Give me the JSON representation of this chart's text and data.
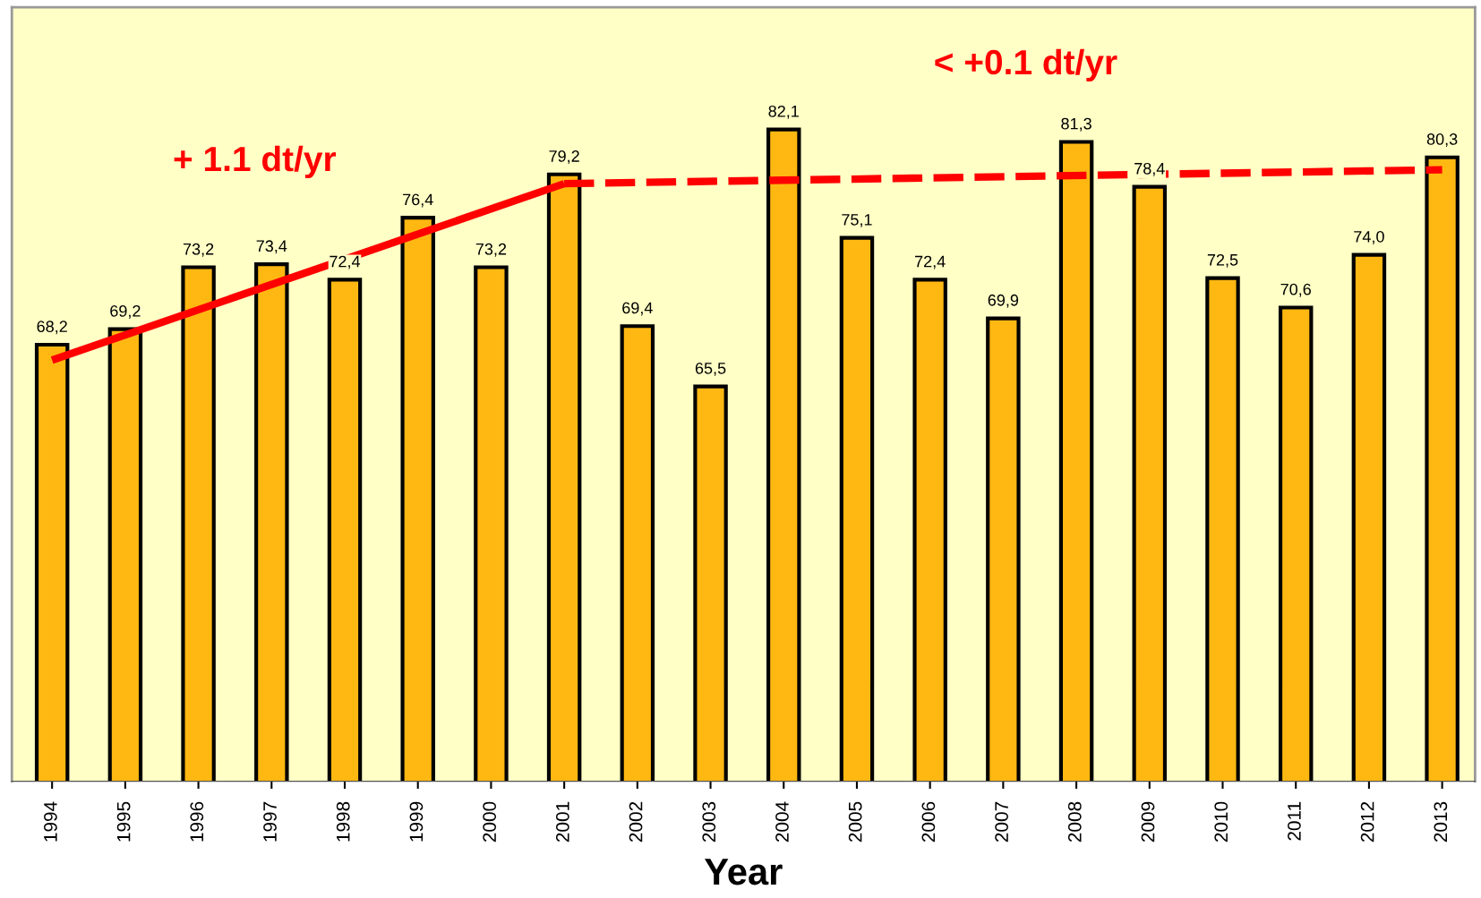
{
  "chart_data": {
    "type": "bar",
    "xlabel": "Year",
    "categories": [
      "1994",
      "1995",
      "1996",
      "1997",
      "1998",
      "1999",
      "2000",
      "2001",
      "2002",
      "2003",
      "2004",
      "2005",
      "2006",
      "2007",
      "2008",
      "2009",
      "2010",
      "2011",
      "2012",
      "2013"
    ],
    "series": [
      {
        "color": "#ffb812",
        "values": [
          68.2,
          69.2,
          73.2,
          73.4,
          72.4,
          76.4,
          73.2,
          79.2,
          69.4,
          65.5,
          82.1,
          75.1,
          72.4,
          69.9,
          81.3,
          78.4,
          72.5,
          70.6,
          74.0,
          80.3
        ],
        "value_labels": [
          "68,2",
          "69,2",
          "73,2",
          "73,4",
          "72,4",
          "76,4",
          "73,2",
          "79,2",
          "69,4",
          "65,5",
          "82,1",
          "75,1",
          "72,4",
          "69,9",
          "81,3",
          "78,4",
          "72,5",
          "70,6",
          "74,0",
          "80,3"
        ]
      },
      {
        "type": "line",
        "color": "#ff0000",
        "line_style": "solid",
        "values": [
          67.2,
          null,
          null,
          null,
          null,
          null,
          null,
          78.6,
          null,
          null,
          null,
          null,
          null,
          null,
          null,
          null,
          null,
          null,
          null,
          null
        ]
      },
      {
        "type": "line",
        "color": "#ff0000",
        "line_style": "dashed",
        "values": [
          null,
          null,
          null,
          null,
          null,
          null,
          null,
          78.6,
          null,
          null,
          null,
          null,
          null,
          null,
          null,
          null,
          null,
          null,
          null,
          79.5
        ]
      }
    ],
    "annotations": [
      "+ 1.1 dt/yr",
      "< +0.1 dt/yr"
    ],
    "ylim": [
      40,
      90
    ],
    "tick_labels": "x",
    "grid": false,
    "legend": false
  }
}
